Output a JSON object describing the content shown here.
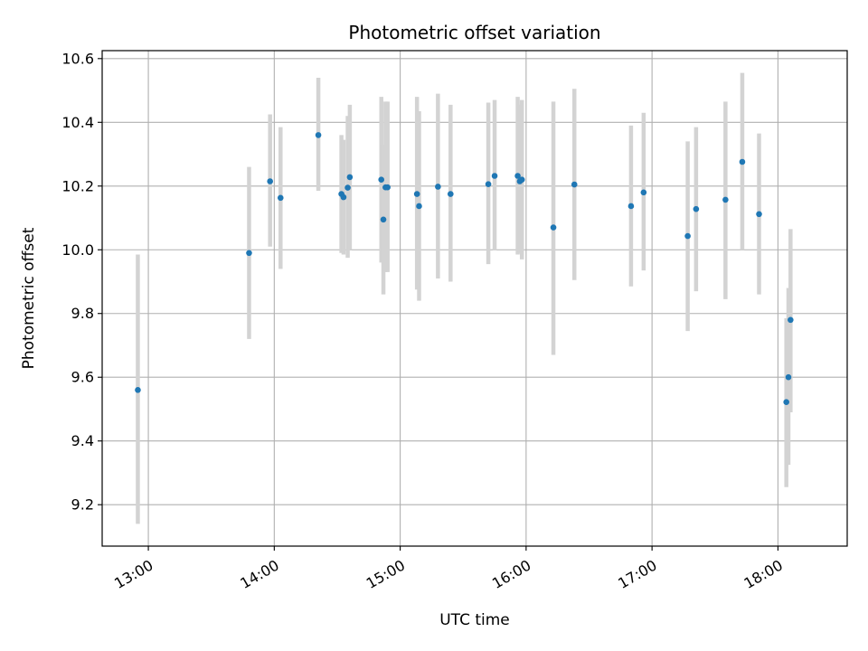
{
  "chart_data": {
    "type": "scatter",
    "title": "Photometric offset variation",
    "xlabel": "UTC time",
    "ylabel": "Photometric offset",
    "x_unit": "hours UTC",
    "xlim": [
      "12:38",
      "18:33"
    ],
    "ylim": [
      9.07,
      10.625
    ],
    "xticks": [
      "13:00",
      "14:00",
      "15:00",
      "16:00",
      "17:00",
      "18:00"
    ],
    "yticks": [
      "9.2",
      "9.4",
      "9.6",
      "9.8",
      "10.0",
      "10.2",
      "10.4",
      "10.6"
    ],
    "grid": true,
    "colors": {
      "points": "#1f77b4",
      "errorbars": "#d3d3d3",
      "grid": "#b0b0b0"
    },
    "points": [
      {
        "x": "12:55",
        "y": 9.56,
        "err_low": 9.14,
        "err_high": 9.985
      },
      {
        "x": "13:48",
        "y": 9.99,
        "err_low": 9.72,
        "err_high": 10.26
      },
      {
        "x": "13:58",
        "y": 10.215,
        "err_low": 10.01,
        "err_high": 10.425
      },
      {
        "x": "14:03",
        "y": 10.163,
        "err_low": 9.94,
        "err_high": 10.385
      },
      {
        "x": "14:21",
        "y": 10.36,
        "err_low": 10.185,
        "err_high": 10.54
      },
      {
        "x": "14:32",
        "y": 10.175,
        "err_low": 9.99,
        "err_high": 10.36
      },
      {
        "x": "14:33",
        "y": 10.165,
        "err_low": 9.985,
        "err_high": 10.345
      },
      {
        "x": "14:35",
        "y": 10.195,
        "err_low": 9.975,
        "err_high": 10.42
      },
      {
        "x": "14:36",
        "y": 10.228,
        "err_low": 10.0,
        "err_high": 10.455
      },
      {
        "x": "14:51",
        "y": 10.22,
        "err_low": 9.96,
        "err_high": 10.48
      },
      {
        "x": "14:52",
        "y": 10.095,
        "err_low": 9.86,
        "err_high": 10.33
      },
      {
        "x": "14:53",
        "y": 10.196,
        "err_low": 9.93,
        "err_high": 10.465
      },
      {
        "x": "14:54",
        "y": 10.196,
        "err_low": 9.93,
        "err_high": 10.465
      },
      {
        "x": "15:08",
        "y": 10.175,
        "err_low": 9.875,
        "err_high": 10.48
      },
      {
        "x": "15:09",
        "y": 10.137,
        "err_low": 9.84,
        "err_high": 10.435
      },
      {
        "x": "15:18",
        "y": 10.198,
        "err_low": 9.91,
        "err_high": 10.49
      },
      {
        "x": "15:24",
        "y": 10.175,
        "err_low": 9.9,
        "err_high": 10.455
      },
      {
        "x": "15:42",
        "y": 10.206,
        "err_low": 9.955,
        "err_high": 10.462
      },
      {
        "x": "15:45",
        "y": 10.232,
        "err_low": 9.998,
        "err_high": 10.47
      },
      {
        "x": "15:56",
        "y": 10.232,
        "err_low": 9.985,
        "err_high": 10.48
      },
      {
        "x": "15:57",
        "y": 10.215,
        "err_low": 9.99,
        "err_high": 10.455
      },
      {
        "x": "15:58",
        "y": 10.22,
        "err_low": 9.97,
        "err_high": 10.47
      },
      {
        "x": "16:13",
        "y": 10.07,
        "err_low": 9.67,
        "err_high": 10.465
      },
      {
        "x": "16:23",
        "y": 10.205,
        "err_low": 9.905,
        "err_high": 10.505
      },
      {
        "x": "16:50",
        "y": 10.137,
        "err_low": 9.885,
        "err_high": 10.39
      },
      {
        "x": "16:56",
        "y": 10.18,
        "err_low": 9.935,
        "err_high": 10.43
      },
      {
        "x": "17:17",
        "y": 10.043,
        "err_low": 9.745,
        "err_high": 10.34
      },
      {
        "x": "17:21",
        "y": 10.128,
        "err_low": 9.87,
        "err_high": 10.385
      },
      {
        "x": "17:35",
        "y": 10.157,
        "err_low": 9.845,
        "err_high": 10.465
      },
      {
        "x": "17:43",
        "y": 10.276,
        "err_low": 10.0,
        "err_high": 10.555
      },
      {
        "x": "17:51",
        "y": 10.112,
        "err_low": 9.86,
        "err_high": 10.365
      },
      {
        "x": "18:04",
        "y": 9.522,
        "err_low": 9.255,
        "err_high": 9.785
      },
      {
        "x": "18:05",
        "y": 9.6,
        "err_low": 9.325,
        "err_high": 9.88
      },
      {
        "x": "18:06",
        "y": 9.78,
        "err_low": 9.49,
        "err_high": 10.065
      }
    ]
  }
}
